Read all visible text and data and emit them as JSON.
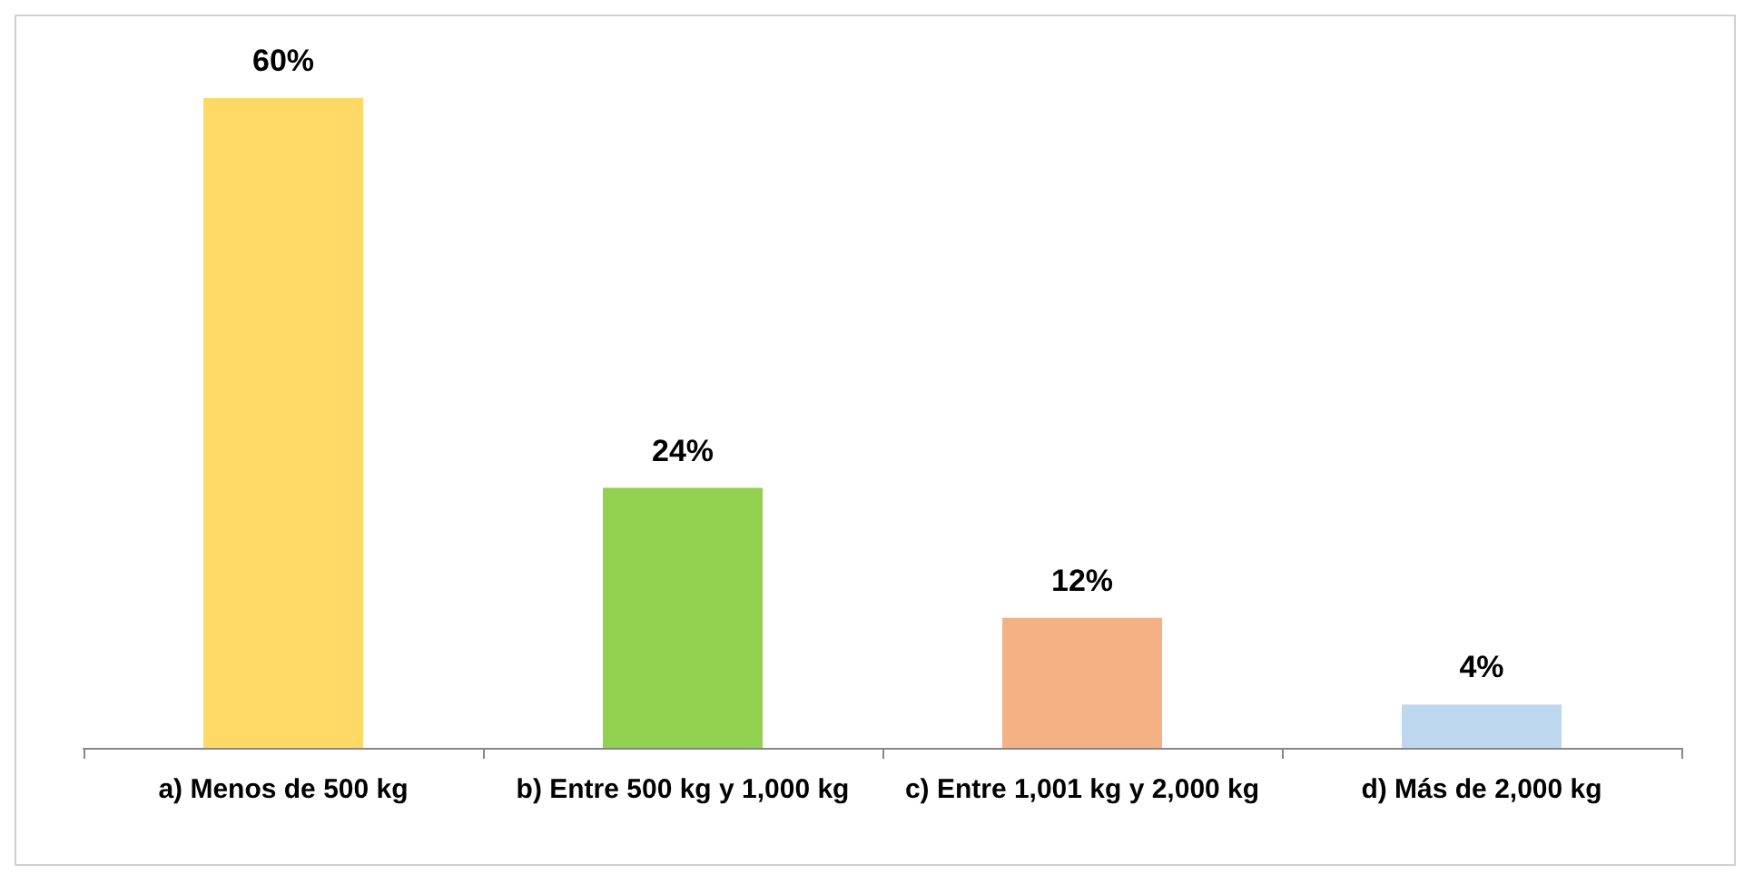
{
  "chart_data": {
    "type": "bar",
    "categories": [
      "a) Menos de 500 kg",
      "b) Entre 500 kg y 1,000 kg",
      "c) Entre 1,001 kg y 2,000 kg",
      "d) Más de 2,000 kg"
    ],
    "values": [
      60,
      24,
      12,
      4
    ],
    "colors": [
      "#ffd966",
      "#92d050",
      "#f4b183",
      "#bdd7ee"
    ],
    "value_labels": [
      "60%",
      "24%",
      "12%",
      "4%"
    ],
    "tick_labels": "x"
  }
}
